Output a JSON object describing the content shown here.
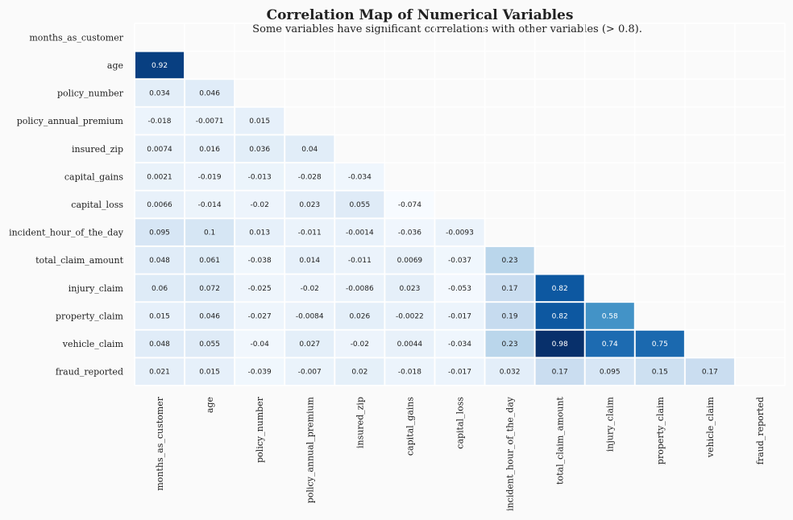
{
  "chart_data": {
    "type": "heatmap",
    "title": "Correlation Map of Numerical Variables",
    "subtitle": "Some variables have significant correlations with other variables (> 0.8).",
    "variables": [
      "months_as_customer",
      "age",
      "policy_number",
      "policy_annual_premium",
      "insured_zip",
      "capital_gains",
      "capital_loss",
      "incident_hour_of_the_day",
      "total_claim_amount",
      "injury_claim",
      "property_claim",
      "vehicle_claim",
      "fraud_reported"
    ],
    "matrix_lower": [
      [],
      [
        0.92
      ],
      [
        0.034,
        0.046
      ],
      [
        -0.018,
        -0.0071,
        0.015
      ],
      [
        0.0074,
        0.016,
        0.036,
        0.04
      ],
      [
        0.0021,
        -0.019,
        -0.013,
        -0.028,
        -0.034
      ],
      [
        0.0066,
        -0.014,
        -0.02,
        0.023,
        0.055,
        -0.074
      ],
      [
        0.095,
        0.1,
        0.013,
        -0.011,
        -0.0014,
        -0.036,
        -0.0093
      ],
      [
        0.048,
        0.061,
        -0.038,
        0.014,
        -0.011,
        0.0069,
        -0.037,
        0.23
      ],
      [
        0.06,
        0.072,
        -0.025,
        -0.02,
        -0.0086,
        0.023,
        -0.053,
        0.17,
        0.82
      ],
      [
        0.015,
        0.046,
        -0.027,
        -0.0084,
        0.026,
        -0.0022,
        -0.017,
        0.19,
        0.82,
        0.58
      ],
      [
        0.048,
        0.055,
        -0.04,
        0.027,
        -0.02,
        0.0044,
        -0.034,
        0.23,
        0.98,
        0.74,
        0.75
      ],
      [
        0.021,
        0.015,
        -0.039,
        -0.007,
        0.02,
        -0.018,
        -0.017,
        0.032,
        0.17,
        0.095,
        0.15,
        0.17
      ]
    ],
    "mask": "upper-triangle-and-diagonal",
    "colormap": "Blues",
    "value_range": [
      -0.074,
      0.98
    ]
  },
  "colors": {
    "background": "#fafafa",
    "grid": "#ffffff",
    "text": "#222222"
  }
}
